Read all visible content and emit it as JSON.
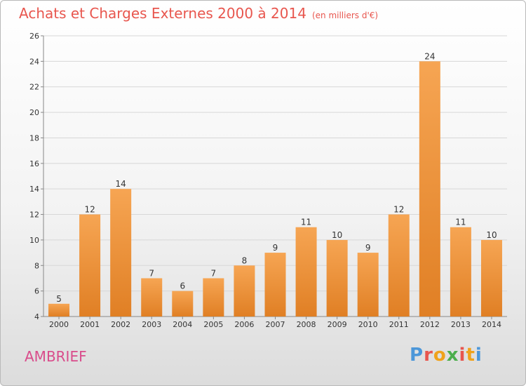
{
  "title": "Achats et Charges Externes 2000 à 2014",
  "unit": "(en milliers d'€)",
  "city": "AMBRIEF",
  "logo": [
    "P",
    "r",
    "o",
    "x",
    "i",
    "t",
    "i"
  ],
  "colors": {
    "title": "#e8564e",
    "city": "#d94c8b",
    "bar_light": "#f6a553",
    "bar_dark": "#e07f24",
    "logo": [
      "#4c97d9",
      "#e8564e",
      "#f0a21b",
      "#4cae4c",
      "#e8564e",
      "#f0a21b",
      "#4c97d9"
    ]
  },
  "chart_data": {
    "type": "bar",
    "categories": [
      "2000",
      "2001",
      "2002",
      "2003",
      "2004",
      "2005",
      "2006",
      "2007",
      "2008",
      "2009",
      "2010",
      "2011",
      "2012",
      "2013",
      "2014"
    ],
    "values": [
      5,
      12,
      14,
      7,
      6,
      7,
      8,
      9,
      11,
      10,
      9,
      12,
      24,
      11,
      10
    ],
    "ylim": [
      4,
      26
    ],
    "yticks": [
      4,
      6,
      8,
      10,
      12,
      14,
      16,
      18,
      20,
      22,
      24,
      26
    ],
    "grid": true
  }
}
